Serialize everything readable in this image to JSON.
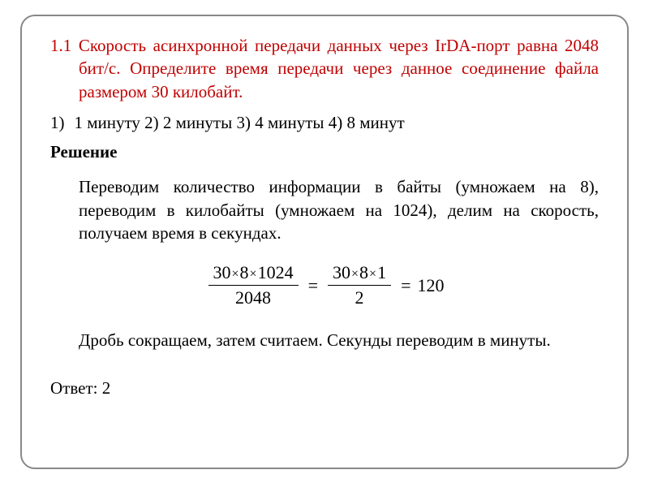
{
  "problem": {
    "number": "1.1",
    "text": "Скорость асинхронной передачи данных через IrDA-порт равна 2048 бит/с. Определите время передачи через данное соединение файла размером 30 килобайт."
  },
  "options": {
    "marker": "1)",
    "text": "1 минуту  2) 2 минуты     3) 4 минуты    4) 8 минут"
  },
  "solution_title": "Решение",
  "explanation": "Переводим количество информации в байты (умножаем на 8), переводим в килобайты (умножаем на 1024), делим на скорость, получаем время в секундах.",
  "formula": {
    "frac1_num": "30×8×1024",
    "frac1_den": "2048",
    "frac2_num": "30×8×1",
    "frac2_den": "2",
    "result": "120"
  },
  "conclusion": "Дробь сокращаем, затем считаем. Секунды переводим в минуты.",
  "answer": "Ответ: 2",
  "colors": {
    "problem_color": "#c00000",
    "text_color": "#000000",
    "border_color": "#888888",
    "background": "#ffffff"
  },
  "typography": {
    "font_family": "Times New Roman",
    "base_fontsize": 21,
    "formula_fontsize": 22
  }
}
